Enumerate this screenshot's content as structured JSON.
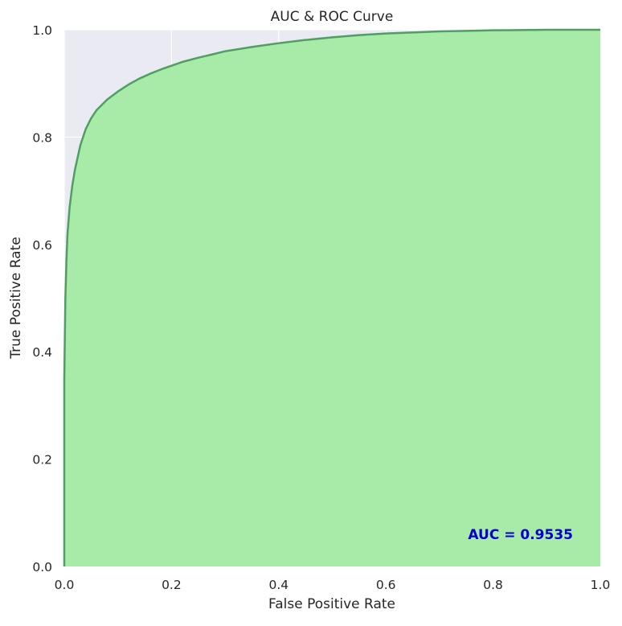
{
  "chart_data": {
    "type": "area",
    "title": "AUC & ROC Curve",
    "xlabel": "False Positive Rate",
    "ylabel": "True Positive Rate",
    "xlim": [
      0,
      1
    ],
    "ylim": [
      0,
      1
    ],
    "grid": true,
    "x_ticks": [
      "0.0",
      "0.2",
      "0.4",
      "0.6",
      "0.8",
      "1.0"
    ],
    "y_ticks": [
      "0.0",
      "0.2",
      "0.4",
      "0.6",
      "0.8",
      "1.0"
    ],
    "annotation": {
      "text": "AUC = 0.9535",
      "value": 0.9535,
      "color": "#0000cc",
      "placement": "bottom-right"
    },
    "colors": {
      "background": "#eaeaf2",
      "grid": "#ffffff",
      "fill": "#a8eaa8",
      "line": "#4f9e62"
    },
    "series": [
      {
        "x": [
          0.0,
          0.0,
          0.002,
          0.004,
          0.006,
          0.01,
          0.015,
          0.02,
          0.03,
          0.04,
          0.05,
          0.06,
          0.07,
          0.08,
          0.1,
          0.12,
          0.14,
          0.16,
          0.18,
          0.2,
          0.22,
          0.25,
          0.28,
          0.3,
          0.35,
          0.4,
          0.45,
          0.5,
          0.55,
          0.6,
          0.65,
          0.7,
          0.75,
          0.8,
          0.85,
          0.9,
          1.0
        ],
        "y": [
          0.0,
          0.35,
          0.5,
          0.57,
          0.62,
          0.67,
          0.71,
          0.74,
          0.785,
          0.815,
          0.835,
          0.85,
          0.86,
          0.87,
          0.885,
          0.898,
          0.909,
          0.918,
          0.926,
          0.933,
          0.94,
          0.948,
          0.955,
          0.96,
          0.968,
          0.975,
          0.981,
          0.986,
          0.99,
          0.993,
          0.995,
          0.997,
          0.998,
          0.999,
          0.9995,
          1.0,
          1.0
        ]
      }
    ]
  }
}
